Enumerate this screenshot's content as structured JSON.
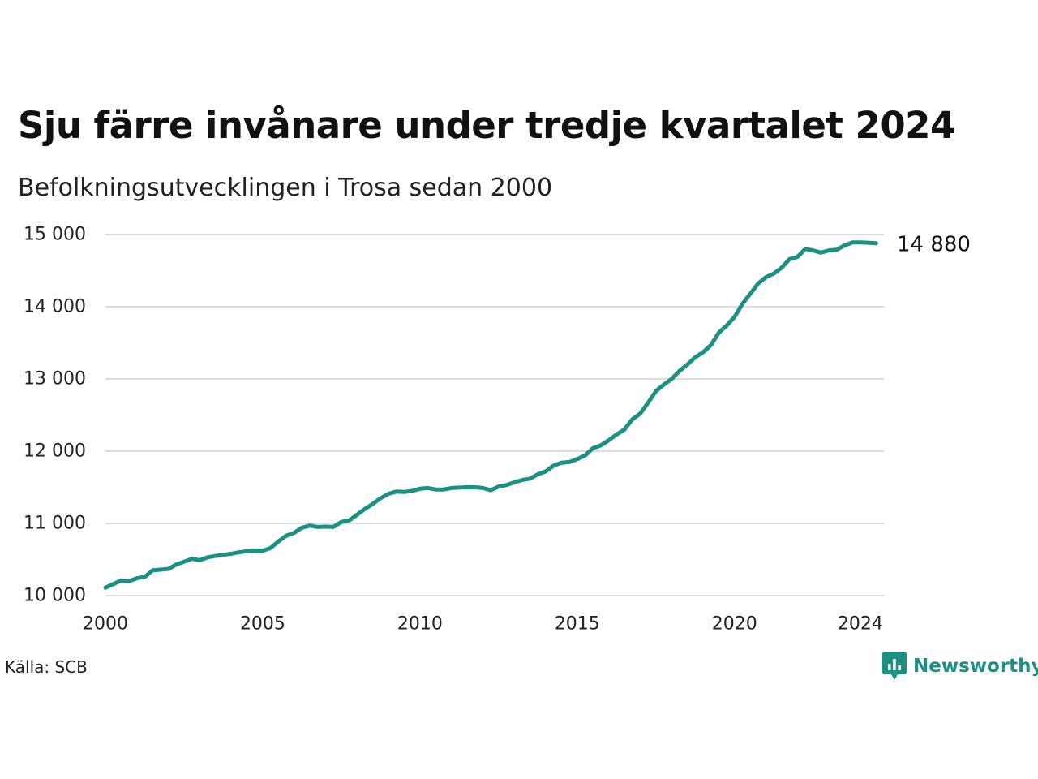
{
  "title": "Sju färre invånare under tredje kvartalet 2024",
  "subtitle": "Befolkningsutvecklingen i Trosa sedan 2000",
  "source": "Källa: SCB",
  "brand": {
    "name": "Newsworthy",
    "icon": "newsworthy-logo-icon"
  },
  "colors": {
    "line": "#1a9183",
    "grid": "#dddddd",
    "brand": "#1a9183",
    "text": "#111111"
  },
  "chart_data": {
    "type": "line",
    "xlim": [
      2000,
      2024.75
    ],
    "ylim": [
      10000,
      15000
    ],
    "grid": true,
    "x_ticks": [
      2000,
      2005,
      2010,
      2015,
      2020,
      2024
    ],
    "x_tick_labels": [
      "2000",
      "2005",
      "2010",
      "2015",
      "2020",
      "2024"
    ],
    "y_ticks": [
      10000,
      11000,
      12000,
      13000,
      14000,
      15000
    ],
    "y_tick_labels": [
      "10 000",
      "11 000",
      "12 000",
      "13 000",
      "14 000",
      "15 000"
    ],
    "end_label": "14 880",
    "series": [
      {
        "x": [
          2000.0,
          2000.25,
          2000.5,
          2000.75,
          2001.0,
          2001.25,
          2001.5,
          2001.75,
          2002.0,
          2002.25,
          2002.5,
          2002.75,
          2003.0,
          2003.25,
          2003.5,
          2003.75,
          2004.0,
          2004.25,
          2004.5,
          2004.75,
          2005.0,
          2005.25,
          2005.5,
          2005.75,
          2006.0,
          2006.25,
          2006.5,
          2006.75,
          2007.0,
          2007.25,
          2007.5,
          2007.75,
          2008.0,
          2008.25,
          2008.5,
          2008.75,
          2009.0,
          2009.25,
          2009.5,
          2009.75,
          2010.0,
          2010.25,
          2010.5,
          2010.75,
          2011.0,
          2011.25,
          2011.5,
          2011.75,
          2012.0,
          2012.25,
          2012.5,
          2012.75,
          2013.0,
          2013.25,
          2013.5,
          2013.75,
          2014.0,
          2014.25,
          2014.5,
          2014.75,
          2015.0,
          2015.25,
          2015.5,
          2015.75,
          2016.0,
          2016.25,
          2016.5,
          2016.75,
          2017.0,
          2017.25,
          2017.5,
          2017.75,
          2018.0,
          2018.25,
          2018.5,
          2018.75,
          2019.0,
          2019.25,
          2019.5,
          2019.75,
          2020.0,
          2020.25,
          2020.5,
          2020.75,
          2021.0,
          2021.25,
          2021.5,
          2021.75,
          2022.0,
          2022.25,
          2022.5,
          2022.75,
          2023.0,
          2023.25,
          2023.5,
          2023.75,
          2024.0,
          2024.25,
          2024.5
        ],
        "values": [
          10110,
          10160,
          10210,
          10200,
          10240,
          10260,
          10350,
          10360,
          10370,
          10430,
          10470,
          10510,
          10490,
          10530,
          10550,
          10565,
          10580,
          10600,
          10615,
          10625,
          10620,
          10660,
          10750,
          10830,
          10870,
          10940,
          10970,
          10950,
          10955,
          10950,
          11020,
          11040,
          11120,
          11200,
          11270,
          11350,
          11410,
          11440,
          11435,
          11450,
          11480,
          11490,
          11470,
          11470,
          11490,
          11495,
          11500,
          11500,
          11490,
          11460,
          11510,
          11530,
          11570,
          11600,
          11620,
          11680,
          11720,
          11800,
          11840,
          11850,
          11890,
          11940,
          12040,
          12080,
          12150,
          12230,
          12300,
          12440,
          12520,
          12670,
          12830,
          12920,
          13000,
          13110,
          13200,
          13300,
          13370,
          13470,
          13640,
          13740,
          13860,
          14040,
          14180,
          14320,
          14410,
          14460,
          14540,
          14660,
          14690,
          14800,
          14780,
          14750,
          14780,
          14790,
          14850,
          14890,
          14890,
          14887,
          14880
        ]
      }
    ]
  }
}
